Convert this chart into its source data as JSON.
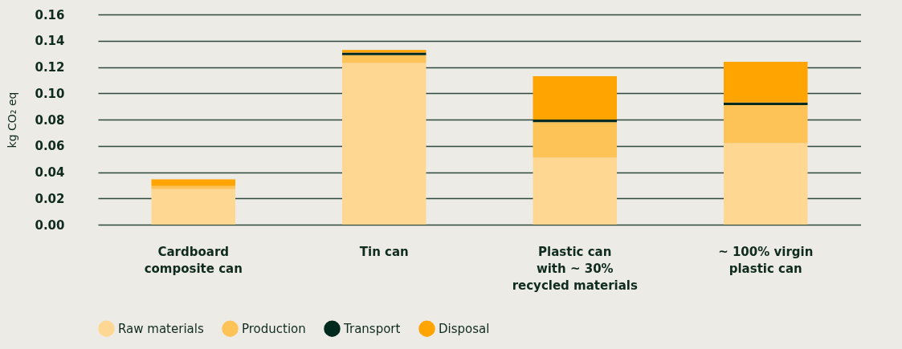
{
  "chart_data": {
    "type": "bar",
    "stacked": true,
    "ylabel": "kg CO₂ eq",
    "categories": [
      "Cardboard\ncomposite can",
      "Tin can",
      "Plastic can\nwith ~ 30%\nrecycled materials",
      "~ 100% virgin\nplastic can"
    ],
    "series": [
      {
        "name": "Raw materials",
        "color": "#fed893",
        "values": [
          0.027,
          0.123,
          0.051,
          0.062
        ]
      },
      {
        "name": "Production",
        "color": "#fec356",
        "values": [
          0.0025,
          0.006,
          0.027,
          0.029
        ]
      },
      {
        "name": "Transport",
        "color": "#002a1e",
        "values": [
          0,
          0.002,
          0.002,
          0.002
        ]
      },
      {
        "name": "Disposal",
        "color": "#ffa400",
        "values": [
          0.005,
          0.002,
          0.033,
          0.031
        ]
      }
    ],
    "ylim": [
      0,
      0.16
    ],
    "yticks": [
      {
        "value": 0,
        "label": "0.00"
      },
      {
        "value": 0.02,
        "label": "0.02"
      },
      {
        "value": 0.04,
        "label": "0.04"
      },
      {
        "value": 0.06,
        "label": "0.06"
      },
      {
        "value": 0.08,
        "label": "0.08"
      },
      {
        "value": 0.1,
        "label": "0.10"
      },
      {
        "value": 0.12,
        "label": "0.12"
      },
      {
        "value": 0.14,
        "label": "0.14"
      },
      {
        "value": 0.16,
        "label": "0.16"
      }
    ],
    "grid": "y",
    "legend": "bottom"
  }
}
